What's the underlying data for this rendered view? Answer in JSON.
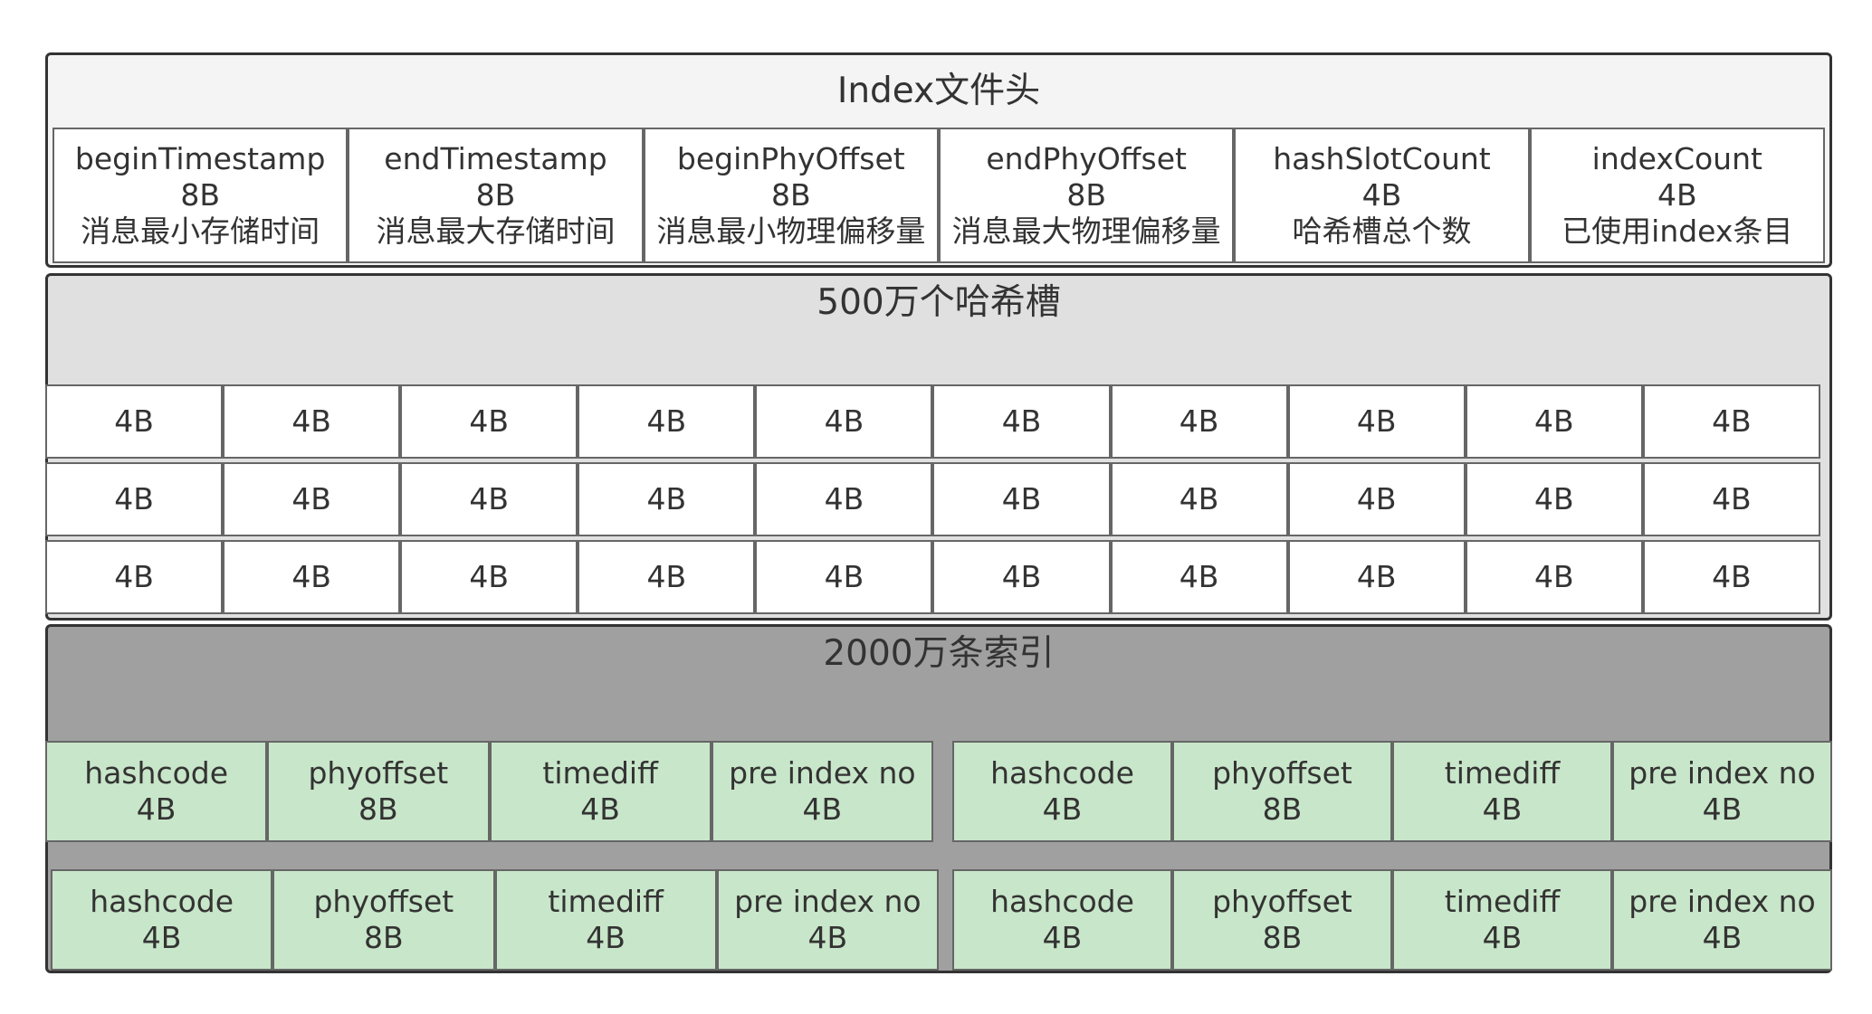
{
  "header": {
    "title": "Index文件头",
    "fields": [
      {
        "name": "beginTimestamp",
        "size": "8B",
        "desc": "消息最小存储时间"
      },
      {
        "name": "endTimestamp",
        "size": "8B",
        "desc": "消息最大存储时间"
      },
      {
        "name": "beginPhyOffset",
        "size": "8B",
        "desc": "消息最小物理偏移量"
      },
      {
        "name": "endPhyOffset",
        "size": "8B",
        "desc": "消息最大物理偏移量"
      },
      {
        "name": "hashSlotCount",
        "size": "4B",
        "desc": "哈希槽总个数"
      },
      {
        "name": "indexCount",
        "size": "4B",
        "desc": "已使用index条目"
      }
    ]
  },
  "hash_slots": {
    "title": "500万个哈希槽",
    "slot_label": "4B",
    "rows": 3,
    "cols": 10
  },
  "index_entries": {
    "title": "2000万条索引",
    "fields": [
      {
        "name": "hashcode",
        "size": "4B"
      },
      {
        "name": "phyoffset",
        "size": "8B"
      },
      {
        "name": "timediff",
        "size": "4B"
      },
      {
        "name": "pre index no",
        "size": "4B"
      }
    ]
  },
  "colors": {
    "header_bg": "#f4f4f4",
    "slots_bg": "#e0e0e0",
    "index_bg": "#a0a0a0",
    "entry_bg": "#c8e6c9",
    "border": "#333333"
  }
}
